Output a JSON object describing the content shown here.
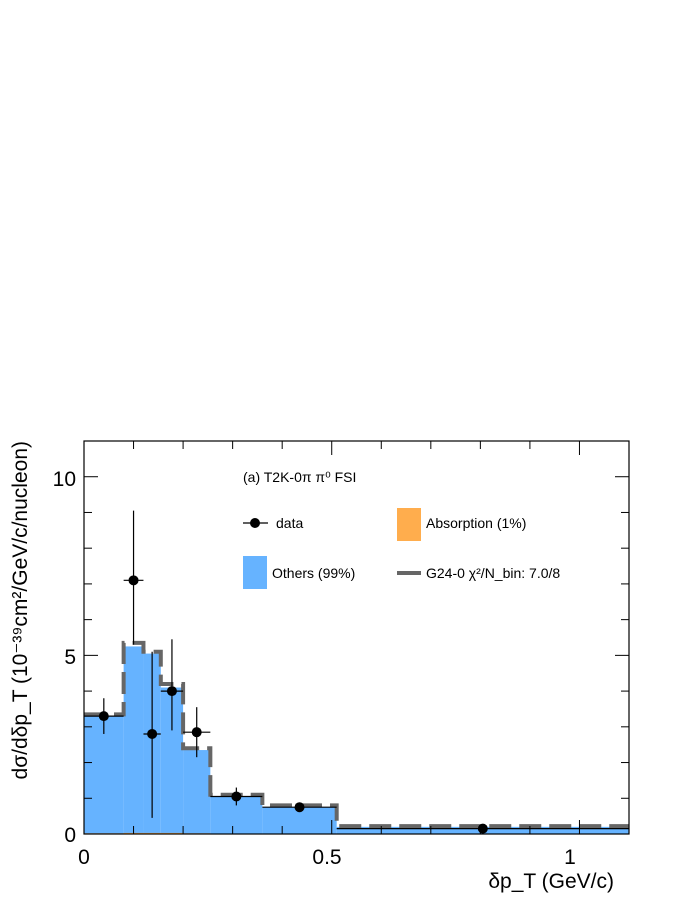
{
  "chart_data": {
    "type": "histogram",
    "title": "(a) T2K-0π  π⁰ FSI",
    "xlabel": "δp_T (GeV/c)",
    "ylabel": "dσ/dδp_T (10⁻³⁹cm²/GeV/c/nucleon)",
    "xlim": [
      0,
      1.1
    ],
    "ylim": [
      0,
      11
    ],
    "xticks": [
      0,
      0.5,
      1
    ],
    "xtick_labels": [
      "0",
      "0.5",
      "1"
    ],
    "yticks": [
      0,
      5,
      10
    ],
    "ytick_labels": [
      "0",
      "5",
      "10"
    ],
    "bin_edges": [
      0,
      0.08,
      0.12,
      0.155,
      0.2,
      0.255,
      0.36,
      0.51,
      1.1
    ],
    "series": [
      {
        "name": "Others (99%)",
        "kind": "filled-histogram",
        "color": "#66b3ff",
        "values": [
          3.3,
          5.25,
          5.05,
          4.1,
          2.35,
          1.05,
          0.75,
          0.2
        ]
      },
      {
        "name": "Absorption (1%)",
        "kind": "filled-histogram",
        "color": "#ffad4d",
        "values": [
          0.02,
          0.03,
          0.03,
          0.03,
          0.02,
          0.01,
          0.01,
          0.0
        ]
      },
      {
        "name": "G24-0 χ²/N_bin: 7.0/8",
        "kind": "dashed-step",
        "color": "#666666",
        "values": [
          3.35,
          5.35,
          5.1,
          4.2,
          2.4,
          1.1,
          0.8,
          0.22
        ]
      },
      {
        "name": "data",
        "kind": "points",
        "color": "#000000",
        "x": [
          0.04,
          0.1,
          0.1375,
          0.1775,
          0.2275,
          0.3075,
          0.435,
          0.805
        ],
        "y": [
          3.3,
          7.1,
          2.8,
          4.0,
          2.85,
          1.05,
          0.75,
          0.15
        ],
        "yerr_low": [
          0.5,
          1.8,
          2.35,
          1.1,
          0.7,
          0.25,
          0.12,
          0.05
        ],
        "yerr_high": [
          0.5,
          1.95,
          2.3,
          1.45,
          0.7,
          0.25,
          0.12,
          0.05
        ]
      }
    ],
    "legend": {
      "placement": "top-right",
      "entries": [
        {
          "label": "data",
          "type": "marker"
        },
        {
          "label": "Absorption (1%)",
          "type": "box",
          "color": "#ffad4d"
        },
        {
          "label": "Others (99%)",
          "type": "box",
          "color": "#66b3ff"
        },
        {
          "label": "G24-0 χ²/N_bin: 7.0/8",
          "type": "line",
          "color": "#666666"
        }
      ]
    },
    "grid": false
  }
}
